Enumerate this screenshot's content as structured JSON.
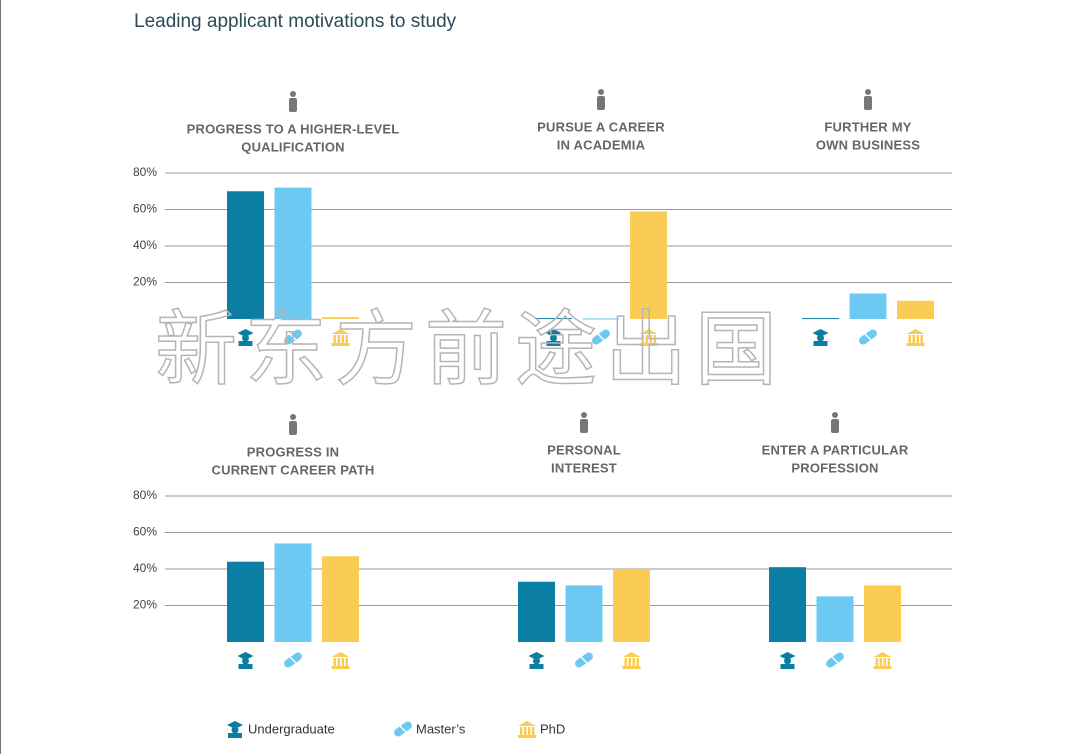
{
  "chart_data": {
    "type": "bar",
    "title": "Leading applicant motivations to study",
    "watermark": "新东方前途出国",
    "categories": [
      [
        "PROGRESS TO A HIGHER-LEVEL",
        "QUALIFICATION"
      ],
      [
        "PURSUE A CAREER",
        "IN ACADEMIA"
      ],
      [
        "FURTHER MY",
        "OWN BUSINESS"
      ],
      [
        "PROGRESS IN",
        "CURRENT CAREER PATH"
      ],
      [
        "PERSONAL",
        "INTEREST"
      ],
      [
        "ENTER A PARTICULAR",
        "PROFESSION"
      ]
    ],
    "series": [
      {
        "name": "Undergraduate",
        "color": "#0a7fa3",
        "values": [
          70,
          0.5,
          0.5,
          44,
          33,
          41
        ]
      },
      {
        "name": "Master’s",
        "color": "#6cc9f1",
        "values": [
          72,
          0.3,
          14,
          54,
          31,
          25
        ]
      },
      {
        "name": "PhD",
        "color": "#f9cd55",
        "values": [
          1,
          59,
          10,
          47,
          40,
          31
        ]
      }
    ],
    "ylim": [
      0,
      80
    ],
    "yticks": [
      {
        "value": 20,
        "label": "20%"
      },
      {
        "value": 40,
        "label": "40%"
      },
      {
        "value": 60,
        "label": "60%"
      },
      {
        "value": 80,
        "label": "80%"
      }
    ],
    "grid": true
  }
}
